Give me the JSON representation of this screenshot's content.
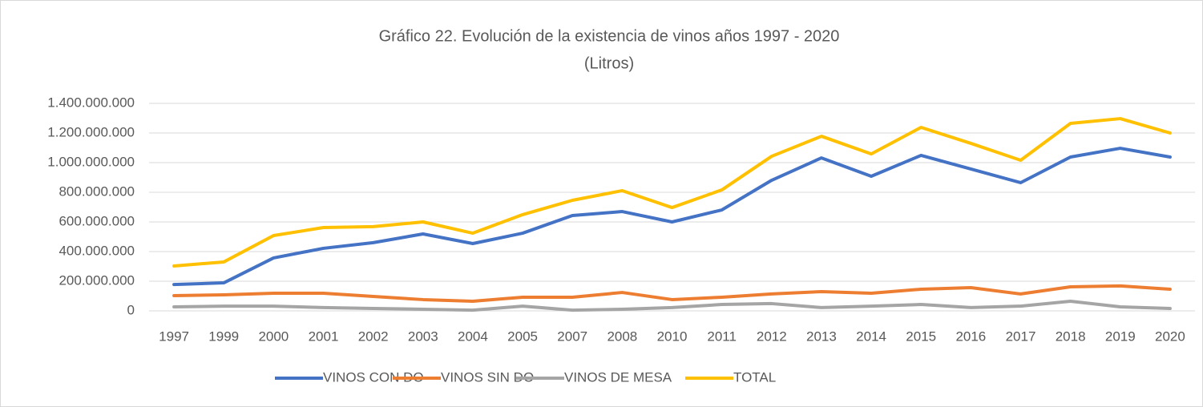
{
  "chart_data": {
    "type": "line",
    "title": "Gráfico 22. Evolución de la existencia de vinos años 1997 - 2020",
    "subtitle": "(Litros)",
    "categories": [
      "1997",
      "1999",
      "2000",
      "2001",
      "2002",
      "2003",
      "2004",
      "2005",
      "2007",
      "2008",
      "2010",
      "2011",
      "2012",
      "2013",
      "2014",
      "2015",
      "2016",
      "2017",
      "2018",
      "2019",
      "2020"
    ],
    "series": [
      {
        "name": "VINOS CON DO",
        "color": "#4472c4",
        "values": [
          178000000,
          189000000,
          357000000,
          422000000,
          460000000,
          519000000,
          454000000,
          524000000,
          643000000,
          670000000,
          600000000,
          681000000,
          881000000,
          1032000000,
          908000000,
          1049000000,
          957000000,
          865000000,
          1038000000,
          1097000000,
          1038000000
        ]
      },
      {
        "name": "VINOS SIN DO",
        "color": "#ed7d31",
        "values": [
          103000000,
          108000000,
          119000000,
          119000000,
          97000000,
          76000000,
          65000000,
          92000000,
          92000000,
          124000000,
          76000000,
          92000000,
          114000000,
          130000000,
          119000000,
          146000000,
          157000000,
          114000000,
          162000000,
          168000000,
          146000000
        ]
      },
      {
        "name": "VINOS DE MESA",
        "color": "#a5a5a5",
        "values": [
          27000000,
          32000000,
          32000000,
          22000000,
          16000000,
          11000000,
          5000000,
          32000000,
          5000000,
          11000000,
          22000000,
          43000000,
          49000000,
          22000000,
          32000000,
          43000000,
          22000000,
          32000000,
          65000000,
          27000000,
          16000000
        ]
      },
      {
        "name": "TOTAL",
        "color": "#ffc000",
        "values": [
          303000000,
          330000000,
          508000000,
          562000000,
          568000000,
          600000000,
          524000000,
          649000000,
          746000000,
          811000000,
          697000000,
          816000000,
          1043000000,
          1178000000,
          1059000000,
          1238000000,
          1130000000,
          1016000000,
          1265000000,
          1297000000,
          1200000000
        ]
      }
    ],
    "ylim": [
      0,
      1400000000
    ],
    "yticks": [
      0,
      {
        "value": 200000000,
        "label": "200.000.000"
      },
      {
        "value": 400000000,
        "label": "400.000.000"
      },
      {
        "value": 600000000,
        "label": "600.000.000"
      },
      {
        "value": 800000000,
        "label": "800.000.000"
      },
      {
        "value": 1000000000,
        "label": "1.000.000.000"
      },
      {
        "value": 1200000000,
        "label": "1.200.000.000"
      },
      {
        "value": 1400000000,
        "label": "1.400.000.000"
      }
    ],
    "grid": true,
    "legend": "bottom"
  }
}
